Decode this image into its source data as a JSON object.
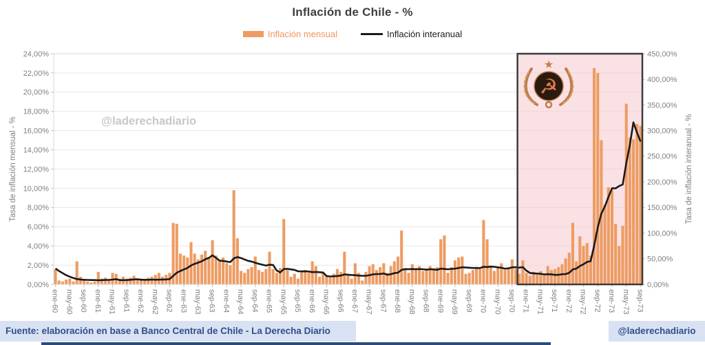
{
  "title": "Inflación de Chile - %",
  "legend": {
    "bar_label": "Inflación mensual",
    "line_label": "Inflación interanual"
  },
  "watermark": "@laderechadiario",
  "footer": {
    "source": "Fuente: elaboración en base a Banco Central de Chile - La Derecha Diario",
    "handle": "@laderechadiario"
  },
  "chart_data": {
    "type": "bar",
    "title": "Inflación de Chile - %",
    "x_start": "ene-60",
    "x_end": "sep-73",
    "x_tick_labels": [
      "ene-60",
      "may-60",
      "sep-60",
      "ene-61",
      "may-61",
      "sep-61",
      "ene-62",
      "may-62",
      "sep-62",
      "ene-63",
      "may-63",
      "sep-63",
      "ene-64",
      "may-64",
      "sep-64",
      "ene-65",
      "may-65",
      "sep-65",
      "ene-66",
      "may-66",
      "sep-66",
      "ene-67",
      "may-67",
      "sep-67",
      "ene-68",
      "may-68",
      "sep-68",
      "ene-69",
      "may-69",
      "sep-69",
      "ene-70",
      "may-70",
      "sep-70",
      "ene-71",
      "may-71",
      "sep-71",
      "ene-72",
      "may-72",
      "sep-72",
      "ene-73",
      "may-73",
      "sep-73"
    ],
    "x_tick_step_months": 4,
    "left_axis": {
      "label": "Tasa de inflación mensual - %",
      "min": 0,
      "max": 24,
      "tick_labels": [
        "0,00%",
        "2,00%",
        "4,00%",
        "6,00%",
        "8,00%",
        "10,00%",
        "12,00%",
        "14,00%",
        "16,00%",
        "18,00%",
        "20,00%",
        "22,00%",
        "24,00%"
      ]
    },
    "right_axis": {
      "label": "Tasa de inflación interanual - %",
      "min": 0,
      "max": 450,
      "tick_labels": [
        "0,00%",
        "50,00%",
        "100,00%",
        "150,00%",
        "200,00%",
        "250,00%",
        "300,00%",
        "350,00%",
        "400,00%",
        "450,00%"
      ]
    },
    "grid": true,
    "legend_position": "top",
    "series": [
      {
        "name": "Inflación mensual",
        "type": "bar",
        "axis": "left",
        "color": "#ED9C63",
        "values": [
          1.6,
          0.4,
          0.3,
          0.5,
          0.6,
          0.3,
          2.4,
          0.8,
          0.4,
          0.3,
          0.2,
          0.3,
          1.3,
          0.6,
          0.7,
          0.5,
          1.2,
          1.1,
          0.6,
          0.8,
          0.6,
          0.7,
          0.9,
          0.5,
          0.6,
          0.5,
          0.7,
          0.8,
          1.0,
          1.2,
          0.8,
          1.0,
          1.2,
          6.4,
          6.3,
          3.2,
          3.0,
          2.8,
          4.4,
          3.2,
          2.6,
          3.1,
          3.5,
          2.8,
          4.6,
          3.0,
          2.5,
          2.8,
          2.2,
          2.0,
          9.8,
          4.8,
          1.4,
          1.2,
          1.6,
          1.8,
          2.9,
          1.5,
          1.3,
          1.6,
          3.4,
          1.6,
          1.2,
          1.7,
          6.8,
          1.5,
          0.8,
          1.1,
          0.6,
          1.4,
          1.5,
          1.2,
          2.4,
          1.9,
          0.8,
          1.2,
          0.9,
          0.7,
          1.1,
          1.6,
          1.3,
          3.4,
          1.0,
          0.6,
          2.2,
          1.2,
          0.4,
          1.3,
          1.9,
          2.1,
          1.5,
          1.8,
          2.2,
          1.2,
          1.9,
          2.4,
          2.9,
          5.6,
          1.7,
          1.2,
          2.1,
          1.7,
          1.9,
          1.4,
          1.6,
          1.9,
          1.6,
          1.8,
          4.7,
          5.1,
          1.2,
          1.8,
          2.5,
          2.8,
          2.9,
          1.1,
          1.2,
          1.5,
          1.7,
          1.6,
          6.7,
          4.7,
          1.9,
          1.4,
          1.7,
          2.2,
          1.5,
          1.7,
          2.6,
          1.6,
          1.1,
          2.5,
          1.2,
          0.9,
          1.3,
          1.0,
          1.4,
          1.1,
          1.9,
          1.5,
          1.6,
          1.8,
          2.1,
          2.7,
          3.3,
          6.4,
          2.4,
          5.0,
          4.0,
          4.3,
          3.0,
          22.5,
          22.0,
          15.0,
          8.3,
          10.1,
          9.8,
          6.3,
          4.0,
          6.1,
          18.8,
          15.3,
          15.1,
          16.7,
          16.5
        ]
      },
      {
        "name": "Inflación interanual",
        "type": "line",
        "axis": "right",
        "color": "#1a1a1a",
        "derivation": "trailing 12-month compounded from monthly series",
        "yoy_1960_values": [
          31,
          26,
          22,
          18,
          15,
          12.5,
          10.5,
          9.5,
          9.0,
          8.7,
          8.5,
          8.4
        ]
      }
    ],
    "highlight": {
      "from": "nov-70",
      "to": "sep-73",
      "start_month_index": 130,
      "fill": "#F5C9CE",
      "border": "#3B3B3B",
      "icon": "communist-emblem"
    }
  }
}
